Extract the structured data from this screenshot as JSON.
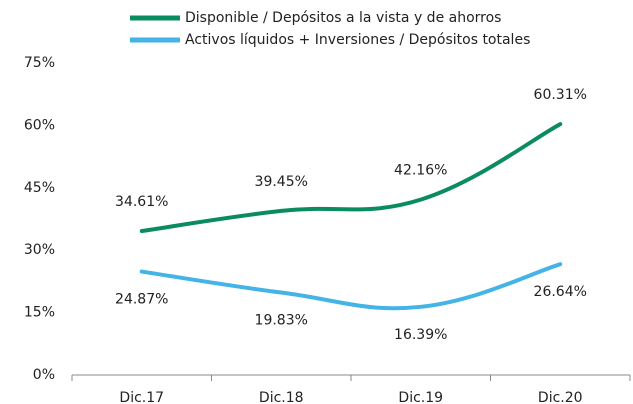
{
  "chart_data": {
    "type": "line",
    "categories": [
      "Dic.17",
      "Dic.18",
      "Dic.19",
      "Dic.20"
    ],
    "series": [
      {
        "name": "Disponible / Depósitos a la vista y de ahorros",
        "color": "#0b8c5f",
        "values": [
          34.61,
          39.45,
          42.16,
          60.31
        ],
        "value_labels": [
          "34.61%",
          "39.45%",
          "42.16%",
          "60.31%"
        ]
      },
      {
        "name": "Activos líquidos + Inversiones / Depósitos totales",
        "color": "#44b3e6",
        "values": [
          24.87,
          19.83,
          16.39,
          26.64
        ],
        "value_labels": [
          "24.87%",
          "19.83%",
          "16.39%",
          "26.64%"
        ]
      }
    ],
    "ylim": [
      0,
      75
    ],
    "yticks": [
      {
        "value": 0,
        "label": "0%"
      },
      {
        "value": 15,
        "label": "15%"
      },
      {
        "value": 30,
        "label": "30%"
      },
      {
        "value": 45,
        "label": "45%"
      },
      {
        "value": 60,
        "label": "60%"
      },
      {
        "value": 75,
        "label": "75%"
      }
    ],
    "grid": false,
    "legend": "top"
  }
}
